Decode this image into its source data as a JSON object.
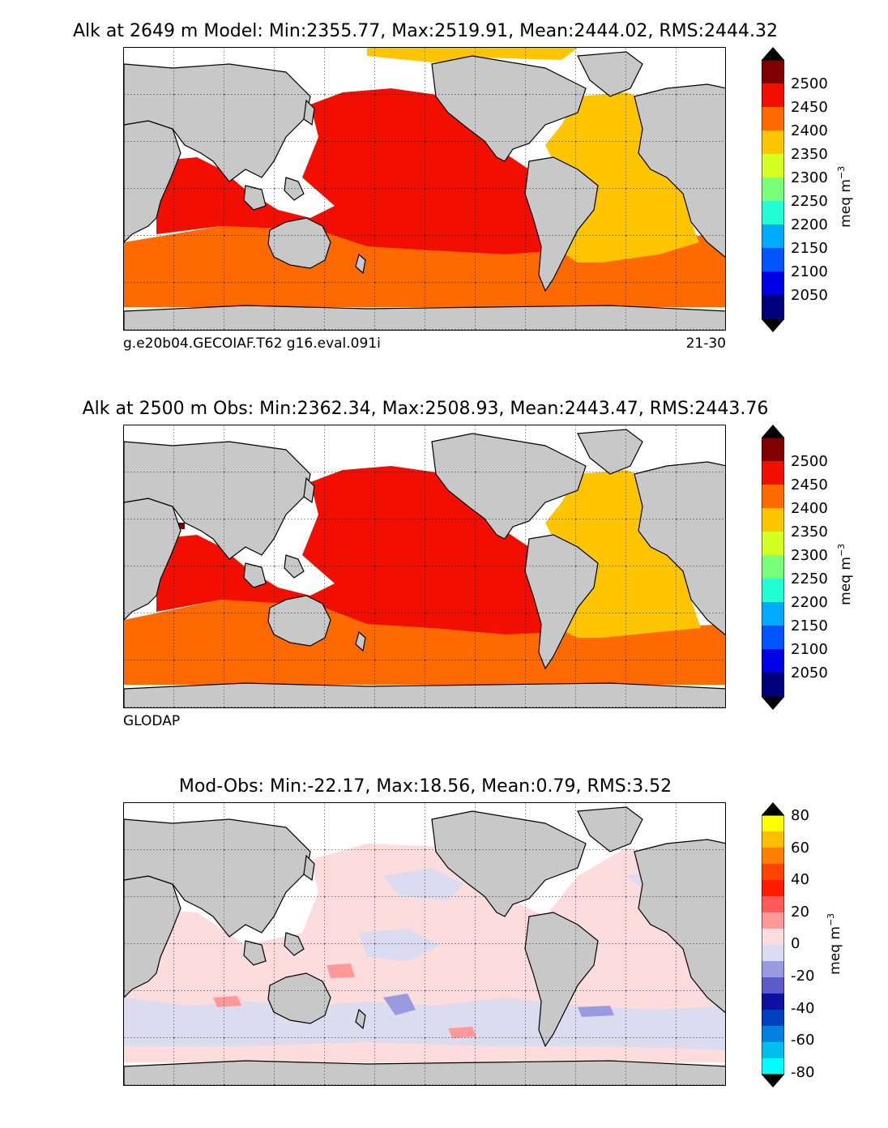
{
  "panels": [
    {
      "id": "model",
      "title": "Alk at 2649 m Model: Min:2355.77, Max:2519.91, Mean:2444.02, RMS:2444.32",
      "footer_left": "g.e20b04.GECOIAF.T62 g16.eval.091i",
      "footer_right": "21-30",
      "colorbar_label": "meq m",
      "colorbar_exp": "−3",
      "colorbar_ticks": [
        "2500",
        "2450",
        "2400",
        "2350",
        "2300",
        "2250",
        "2200",
        "2150",
        "2100",
        "2050"
      ]
    },
    {
      "id": "obs",
      "title": "Alk at 2500 m Obs: Min:2362.34, Max:2508.93, Mean:2443.47, RMS:2443.76",
      "footer_left": "GLODAP",
      "footer_right": "",
      "colorbar_label": "meq m",
      "colorbar_exp": "−3",
      "colorbar_ticks": [
        "2500",
        "2450",
        "2400",
        "2350",
        "2300",
        "2250",
        "2200",
        "2150",
        "2100",
        "2050"
      ]
    },
    {
      "id": "diff",
      "title": "Mod-Obs: Min:-22.17, Max:18.56, Mean:0.79, RMS:3.52",
      "footer_left": "",
      "footer_right": "",
      "colorbar_label": "meq m",
      "colorbar_exp": "−3",
      "colorbar_ticks": [
        "80",
        "60",
        "40",
        "20",
        "0",
        "-20",
        "-40",
        "-60",
        "-80"
      ]
    }
  ],
  "colors": {
    "land": "#c8c8c8",
    "absolute_scale": [
      "#00007f",
      "#0000e6",
      "#0055ff",
      "#00aaff",
      "#23ffd3",
      "#7aff7a",
      "#d3ff23",
      "#ffc500",
      "#ff6a00",
      "#f20e00",
      "#800000"
    ],
    "difference_scale": [
      "#00ffff",
      "#00bff0",
      "#0080e0",
      "#0040c0",
      "#1010a0",
      "#5a5ac8",
      "#9a9ae0",
      "#dcdcf0",
      "#fcdcdc",
      "#ff9999",
      "#ff5a5a",
      "#ff1a00",
      "#ff4400",
      "#ff8000",
      "#ffbf00",
      "#ffff00"
    ]
  }
}
